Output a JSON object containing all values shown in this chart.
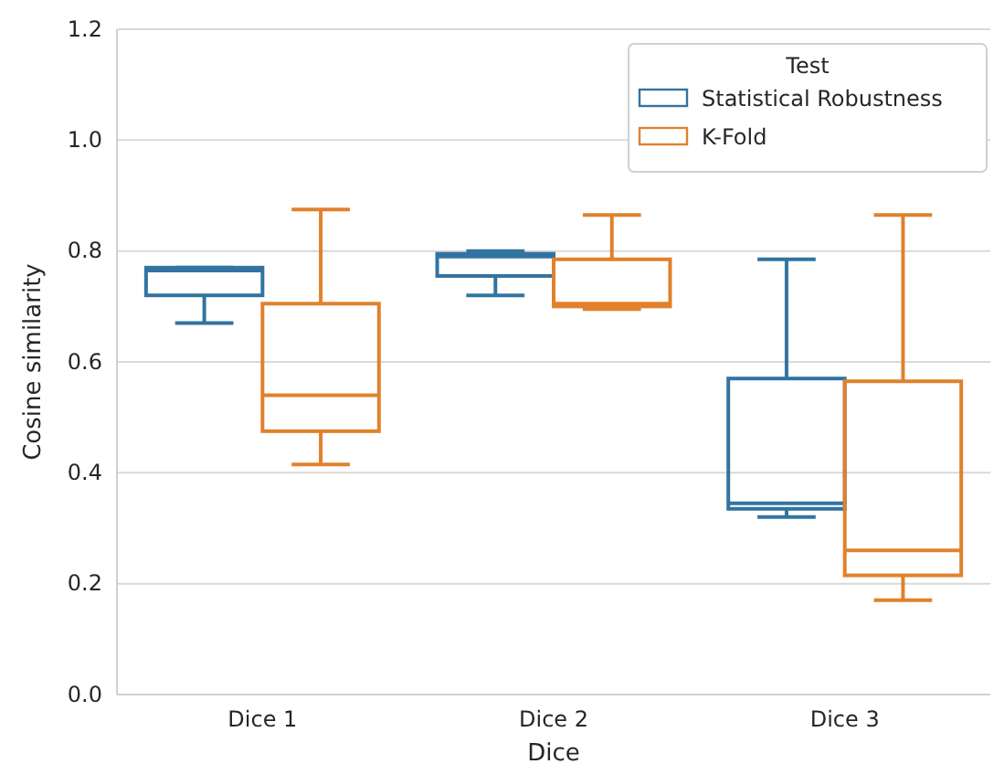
{
  "chart_data": {
    "type": "box",
    "xlabel": "Dice",
    "ylabel": "Cosine similarity",
    "legend_title": "Test",
    "categories": [
      "Dice 1",
      "Dice 2",
      "Dice 3"
    ],
    "series": [
      {
        "name": "Statistical Robustness",
        "color": "#3274a1",
        "boxes": [
          {
            "low": 0.67,
            "q1": 0.72,
            "median": 0.765,
            "q3": 0.77,
            "high": 0.77
          },
          {
            "low": 0.72,
            "q1": 0.755,
            "median": 0.79,
            "q3": 0.795,
            "high": 0.8
          },
          {
            "low": 0.32,
            "q1": 0.335,
            "median": 0.345,
            "q3": 0.57,
            "high": 0.785
          }
        ]
      },
      {
        "name": "K-Fold",
        "color": "#e1812c",
        "boxes": [
          {
            "low": 0.415,
            "q1": 0.475,
            "median": 0.54,
            "q3": 0.705,
            "high": 0.875
          },
          {
            "low": 0.695,
            "q1": 0.7,
            "median": 0.705,
            "q3": 0.785,
            "high": 0.865
          },
          {
            "low": 0.17,
            "q1": 0.215,
            "median": 0.26,
            "q3": 0.565,
            "high": 0.865
          }
        ]
      }
    ],
    "ylim": [
      0,
      1.2
    ],
    "yticks": [
      {
        "value": 0,
        "label": "0.0"
      },
      {
        "value": 0.2,
        "label": "0.2"
      },
      {
        "value": 0.4,
        "label": "0.4"
      },
      {
        "value": 0.6,
        "label": "0.6"
      },
      {
        "value": 0.8,
        "label": "0.8"
      },
      {
        "value": 1.0,
        "label": "1.0"
      },
      {
        "value": 1.2,
        "label": "1.2"
      }
    ],
    "grid": "y",
    "legend": "top right"
  }
}
